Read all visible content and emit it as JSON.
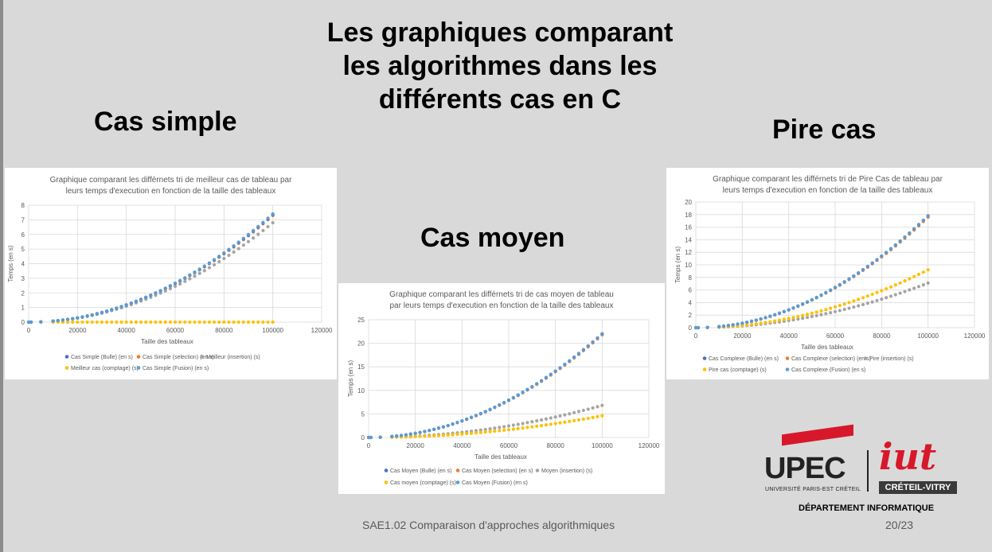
{
  "slide": {
    "title": "Les graphiques comparant\nles algorithmes dans les\ndifférents cas en C",
    "sections": {
      "simple": "Cas simple",
      "moyen": "Cas moyen",
      "pire": "Pire cas"
    },
    "footer": "SAE1.02 Comparaison d'approches algorithmiques",
    "page": "20/23",
    "logo": {
      "upec": "UPEC",
      "upec_sub": "UNIVERSITÉ PARIS-EST CRÉTEIL",
      "iut": "iut",
      "iut_sub": "CRÉTEIL-VITRY",
      "department": "DÉPARTEMENT INFORMATIQUE"
    }
  },
  "colors": {
    "blue": "#4472c4",
    "orange": "#ed7d31",
    "gray": "#a5a5a5",
    "yellow": "#ffc000",
    "lightblue": "#5b9bd5"
  },
  "chart_data": [
    {
      "type": "scatter",
      "title": "Graphique comparant les différnets tri de meilleur cas de tableau par\nleurs temps d'execution en fonction de la taille des tableaux",
      "xlabel": "Taille des tableaux",
      "ylabel": "Temps (en s)",
      "xlim": [
        0,
        120000
      ],
      "xticks": [
        0,
        20000,
        40000,
        60000,
        80000,
        100000,
        120000
      ],
      "ylim": [
        0,
        8
      ],
      "yticks": [
        0,
        1,
        2,
        3,
        4,
        5,
        6,
        7,
        8
      ],
      "grid": true,
      "legend": "bottom",
      "series": [
        {
          "name": "Cas Simple (Bulle) (en s)",
          "color": "#4472c4",
          "model": "power",
          "peak": 7.35,
          "exp": 2
        },
        {
          "name": "Cas Simple (selection) (en s)",
          "color": "#ed7d31",
          "model": "power",
          "peak": 7.3,
          "exp": 2
        },
        {
          "name": "Meilleur (insertion) (s)",
          "color": "#a5a5a5",
          "model": "power",
          "peak": 6.8,
          "exp": 2
        },
        {
          "name": "Meilleur cas (comptage) (s)",
          "color": "#ffc000",
          "model": "zero",
          "peak": 0.0,
          "exp": 1
        },
        {
          "name": "Cas Simple (Fusion) (en s)",
          "color": "#5b9bd5",
          "model": "power",
          "peak": 7.4,
          "exp": 2
        }
      ]
    },
    {
      "type": "scatter",
      "title": "Graphique comparant les différnets tri de cas moyen de tableau\npar leurs temps d'execution en fonction de la taille  des tableaux",
      "xlabel": "Taille des tableaux",
      "ylabel": "Temps (en s)",
      "xlim": [
        0,
        120000
      ],
      "xticks": [
        0,
        20000,
        40000,
        60000,
        80000,
        100000,
        120000
      ],
      "ylim": [
        0,
        25
      ],
      "yticks": [
        0,
        5,
        10,
        15,
        20,
        25
      ],
      "grid": true,
      "legend": "bottom",
      "series": [
        {
          "name": "Cas Moyen (Bulle) (en s)",
          "color": "#4472c4",
          "model": "power",
          "peak": 22.0,
          "exp": 2
        },
        {
          "name": "Cas Moyen (selection) (en s)",
          "color": "#ed7d31",
          "model": "power",
          "peak": 21.8,
          "exp": 2
        },
        {
          "name": "Moyen (insertion) (s)",
          "color": "#a5a5a5",
          "model": "power",
          "peak": 6.8,
          "exp": 2
        },
        {
          "name": "Cas moyen (comptage) (s)",
          "color": "#ffc000",
          "model": "power",
          "peak": 4.6,
          "exp": 2
        },
        {
          "name": "Cas Moyen (Fusion) (en s)",
          "color": "#5b9bd5",
          "model": "power",
          "peak": 22.0,
          "exp": 2
        }
      ]
    },
    {
      "type": "scatter",
      "title": "Graphique comparant les différnets tri de Pire Cas de tableau par\nleurs temps d'execution en fonction de la taille des tableaux",
      "xlabel": "Taille des tableaux",
      "ylabel": "Temps (en s)",
      "xlim": [
        0,
        120000
      ],
      "xticks": [
        0,
        20000,
        40000,
        60000,
        80000,
        100000,
        120000
      ],
      "ylim": [
        0,
        20
      ],
      "yticks": [
        0,
        2,
        4,
        6,
        8,
        10,
        12,
        14,
        16,
        18,
        20
      ],
      "grid": true,
      "legend": "bottom",
      "series": [
        {
          "name": "Cas Complexe (Bulle) (en s)",
          "color": "#4472c4",
          "model": "power",
          "peak": 17.8,
          "exp": 2
        },
        {
          "name": "Cas Complexe (selection) (en s)",
          "color": "#ed7d31",
          "model": "power",
          "peak": 17.6,
          "exp": 2
        },
        {
          "name": "Pire (insertion) (s)",
          "color": "#a5a5a5",
          "model": "power",
          "peak": 7.1,
          "exp": 2
        },
        {
          "name": "Pire cas (comptage) (s)",
          "color": "#ffc000",
          "model": "power",
          "peak": 9.2,
          "exp": 2
        },
        {
          "name": "Cas Complexe (Fusion) (en s)",
          "color": "#5b9bd5",
          "model": "power",
          "peak": 17.8,
          "exp": 2
        }
      ]
    }
  ]
}
